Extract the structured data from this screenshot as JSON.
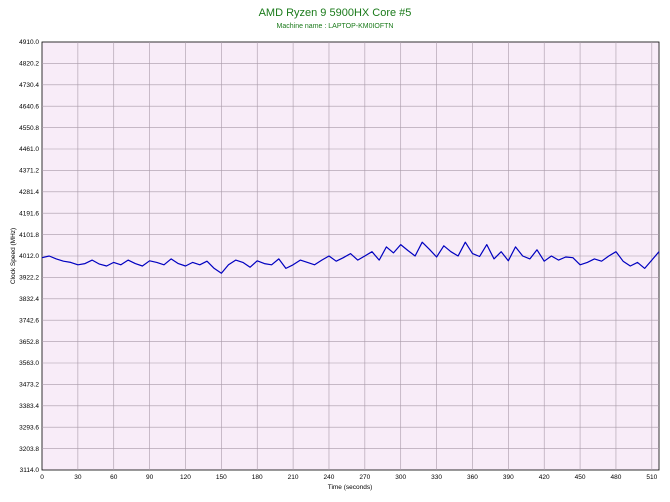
{
  "chart_data": {
    "type": "line",
    "title": "AMD Ryzen 9 5900HX Core #5",
    "subtitle": "Machine name : LAPTOP-KM0IOFTN",
    "xlabel": "Time (seconds)",
    "ylabel": "Clock Speed (MHz)",
    "xlim": [
      0,
      516
    ],
    "ylim": [
      3114.0,
      4910.0
    ],
    "x_ticks": [
      "0",
      "30",
      "60",
      "90",
      "120",
      "150",
      "180",
      "210",
      "240",
      "270",
      "300",
      "330",
      "360",
      "390",
      "420",
      "450",
      "480",
      "510"
    ],
    "y_ticks": [
      "3114.0",
      "3203.8",
      "3293.6",
      "3383.4",
      "3473.2",
      "3563.0",
      "3652.8",
      "3742.6",
      "3832.4",
      "3922.2",
      "4012.0",
      "4101.8",
      "4191.6",
      "4281.4",
      "4371.2",
      "4461.0",
      "4550.8",
      "4640.6",
      "4730.4",
      "4820.2",
      "4910.0"
    ],
    "grid": true,
    "colors": {
      "plot_bg": "#f8ecf8",
      "grid": "#a89aa8",
      "line": "#0000c0",
      "title": "#1a7a1a"
    },
    "series": [
      {
        "x": [
          0,
          6,
          12,
          18,
          24,
          30,
          36,
          42,
          48,
          54,
          60,
          66,
          72,
          78,
          84,
          90,
          96,
          102,
          108,
          114,
          120,
          126,
          132,
          138,
          144,
          150,
          156,
          162,
          168,
          174,
          180,
          186,
          192,
          198,
          204,
          210,
          216,
          222,
          228,
          234,
          240,
          246,
          252,
          258,
          264,
          270,
          276,
          282,
          288,
          294,
          300,
          306,
          312,
          318,
          324,
          330,
          336,
          342,
          348,
          354,
          360,
          366,
          372,
          378,
          384,
          390,
          396,
          402,
          408,
          414,
          420,
          426,
          432,
          438,
          444,
          450,
          456,
          462,
          468,
          474,
          480,
          486,
          492,
          498,
          504,
          510,
          516
        ],
        "values": [
          4005,
          4012,
          4000,
          3990,
          3985,
          3975,
          3980,
          3995,
          3978,
          3970,
          3985,
          3975,
          3995,
          3980,
          3970,
          3992,
          3985,
          3975,
          4000,
          3980,
          3970,
          3985,
          3975,
          3990,
          3960,
          3940,
          3975,
          3995,
          3985,
          3965,
          3992,
          3980,
          3975,
          4000,
          3960,
          3975,
          3995,
          3985,
          3975,
          3995,
          4012,
          3990,
          4005,
          4022,
          3995,
          4012,
          4030,
          3995,
          4050,
          4025,
          4060,
          4035,
          4012,
          4070,
          4040,
          4008,
          4055,
          4030,
          4012,
          4070,
          4022,
          4010,
          4060,
          4000,
          4030,
          3992,
          4050,
          4012,
          4000,
          4038,
          3990,
          4012,
          3995,
          4008,
          4005,
          3975,
          3985,
          4000,
          3990,
          4012,
          4030,
          3990,
          3970,
          3985,
          3960,
          3995,
          4030
        ]
      }
    ]
  }
}
